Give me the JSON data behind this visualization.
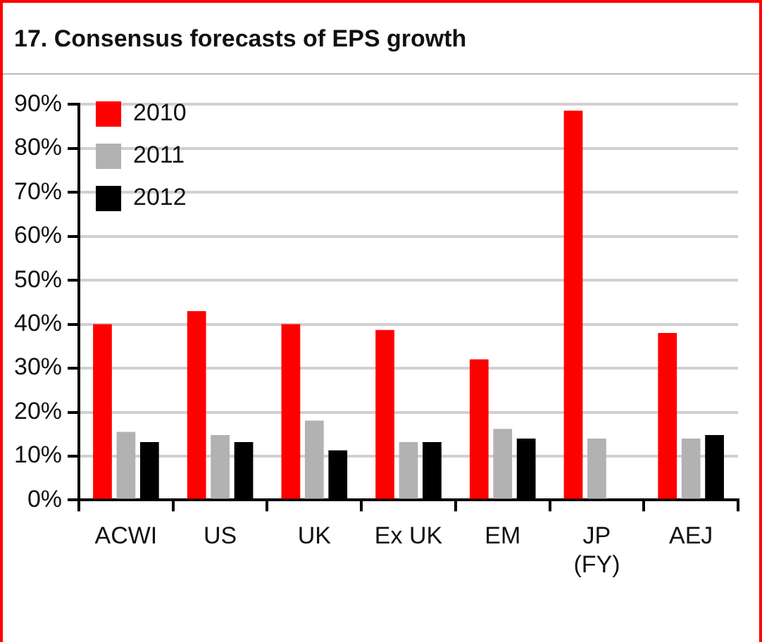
{
  "chart_data": {
    "type": "bar",
    "title": "17. Consensus forecasts of EPS growth",
    "categories": [
      "ACWI",
      "US",
      "UK",
      "Ex UK",
      "EM",
      "JP\n(FY)",
      "AEJ"
    ],
    "series": [
      {
        "name": "2010",
        "color": "#ff0000",
        "values": [
          40,
          43,
          40,
          38.7,
          32,
          88.6,
          38
        ]
      },
      {
        "name": "2011",
        "color": "#b2b2b2",
        "values": [
          15.5,
          14.8,
          18.1,
          13.2,
          16.2,
          14,
          14
        ]
      },
      {
        "name": "2012",
        "color": "#000000",
        "values": [
          13.2,
          13.2,
          11.3,
          13.2,
          14,
          null,
          14.8
        ]
      }
    ],
    "ylim": [
      0,
      90
    ],
    "yticks": [
      {
        "value": 0,
        "label": "0%"
      },
      {
        "value": 10,
        "label": "10%"
      },
      {
        "value": 20,
        "label": "20%"
      },
      {
        "value": 30,
        "label": "30%"
      },
      {
        "value": 40,
        "label": "40%"
      },
      {
        "value": 50,
        "label": "50%"
      },
      {
        "value": 60,
        "label": "60%"
      },
      {
        "value": 70,
        "label": "70%"
      },
      {
        "value": 80,
        "label": "80%"
      },
      {
        "value": 90,
        "label": "90%"
      }
    ],
    "grid": "y",
    "legend": "top left"
  }
}
